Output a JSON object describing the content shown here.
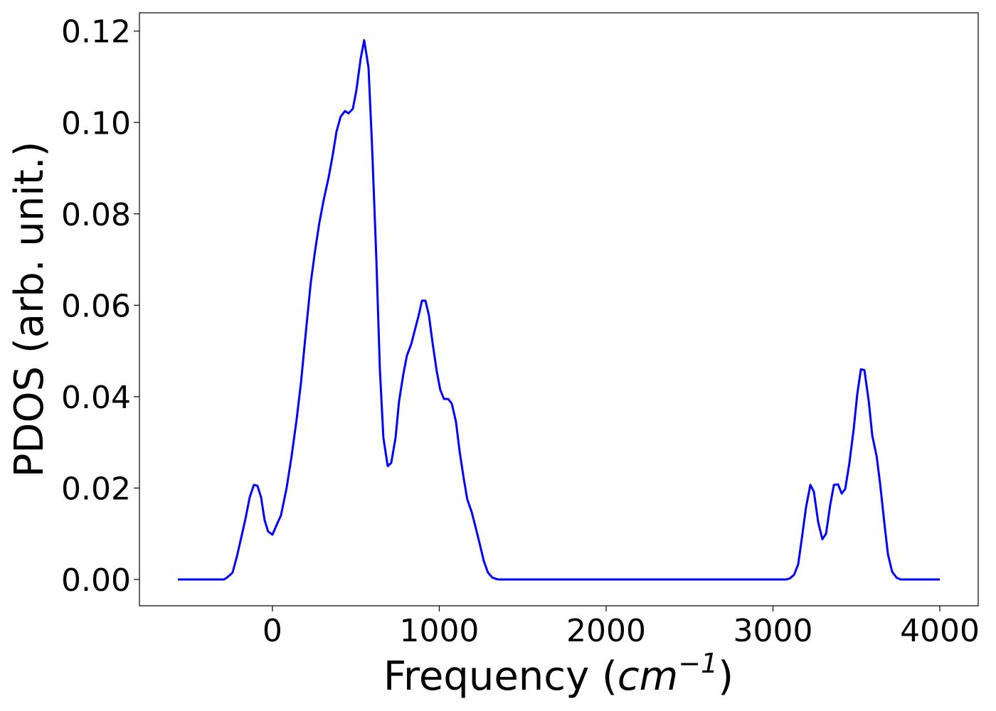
{
  "chart_data": {
    "type": "line",
    "x_label": [
      "Frequency (",
      "cm",
      "−1",
      ")"
    ],
    "y_label": "PDOS (arb. unit.)",
    "x": [
      -567,
      -290,
      -269,
      -239,
      -213,
      -188,
      -162,
      -136,
      -111,
      -90,
      -68,
      -47,
      -26,
      0,
      26,
      51,
      85,
      115,
      145,
      171,
      200,
      230,
      256,
      281,
      307,
      337,
      362,
      384,
      409,
      435,
      456,
      482,
      503,
      529,
      550,
      576,
      597,
      623,
      644,
      665,
      691,
      712,
      738,
      759,
      785,
      806,
      832,
      853,
      878,
      896,
      917,
      938,
      959,
      985,
      1006,
      1028,
      1053,
      1075,
      1100,
      1122,
      1147,
      1168,
      1194,
      1215,
      1241,
      1267,
      1292,
      1318,
      1352,
      3079,
      3100,
      3126,
      3151,
      3173,
      3198,
      3224,
      3245,
      3271,
      3296,
      3318,
      3343,
      3365,
      3390,
      3412,
      3433,
      3458,
      3484,
      3505,
      3527,
      3548,
      3574,
      3595,
      3621,
      3642,
      3667,
      3689,
      3714,
      3740,
      3765,
      4000
    ],
    "series": [
      {
        "color": "#0000ff",
        "values": [
          0,
          0,
          0.0005,
          0.0015,
          0.005,
          0.009,
          0.0132,
          0.018,
          0.0207,
          0.0205,
          0.018,
          0.013,
          0.0105,
          0.0098,
          0.012,
          0.014,
          0.02,
          0.027,
          0.035,
          0.043,
          0.054,
          0.065,
          0.072,
          0.078,
          0.083,
          0.088,
          0.093,
          0.098,
          0.1013,
          0.1025,
          0.102,
          0.103,
          0.107,
          0.114,
          0.118,
          0.112,
          0.095,
          0.07,
          0.046,
          0.031,
          0.0248,
          0.0255,
          0.031,
          0.039,
          0.045,
          0.049,
          0.0515,
          0.0545,
          0.058,
          0.061,
          0.061,
          0.0578,
          0.052,
          0.0455,
          0.0415,
          0.0395,
          0.0395,
          0.0385,
          0.0345,
          0.028,
          0.022,
          0.0175,
          0.0148,
          0.0118,
          0.008,
          0.004,
          0.0015,
          0.0004,
          0,
          0,
          0.0002,
          0.001,
          0.0033,
          0.009,
          0.0158,
          0.0207,
          0.0192,
          0.0125,
          0.0088,
          0.01,
          0.0163,
          0.0207,
          0.0208,
          0.0188,
          0.0198,
          0.0255,
          0.033,
          0.0405,
          0.046,
          0.0458,
          0.039,
          0.0315,
          0.027,
          0.021,
          0.0125,
          0.0055,
          0.0017,
          0.0004,
          0,
          0
        ]
      }
    ],
    "xlim": [
      -797,
      4230
    ],
    "ylim": [
      -0.00576,
      0.124
    ],
    "xticks": [
      0,
      1000,
      2000,
      3000,
      4000
    ],
    "yticks": [
      {
        "value": 0,
        "label": "0.00"
      },
      {
        "value": 0.02,
        "label": "0.02"
      },
      {
        "value": 0.04,
        "label": "0.04"
      },
      {
        "value": 0.06,
        "label": "0.06"
      },
      {
        "value": 0.08,
        "label": "0.08"
      },
      {
        "value": 0.1,
        "label": "0.10"
      },
      {
        "value": 0.12,
        "label": "0.12"
      }
    ],
    "grid": false
  }
}
